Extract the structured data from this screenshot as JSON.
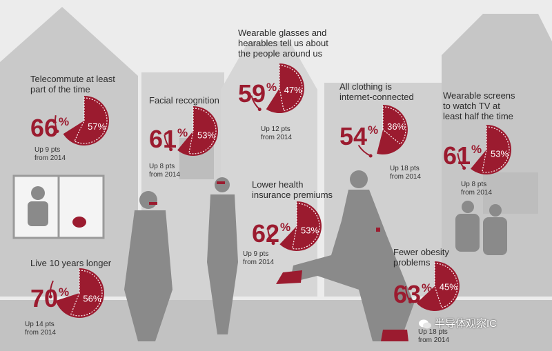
{
  "chart_data": {
    "type": "pie",
    "items": [
      {
        "title": [
          "Telecommute at least",
          "part of the time"
        ],
        "value": 66,
        "previous": 57,
        "note": [
          "Up 9 pts",
          "from 2014"
        ]
      },
      {
        "title": [
          "Facial recognition"
        ],
        "value": 61,
        "previous": 53,
        "note": [
          "Up 8 pts",
          "from 2014"
        ]
      },
      {
        "title": [
          "Wearable glasses and",
          "hearables tell us about",
          "the people around us"
        ],
        "value": 59,
        "previous": 47,
        "note": [
          "Up 12 pts",
          "from 2014"
        ]
      },
      {
        "title": [
          "All clothing is",
          "internet-connected"
        ],
        "value": 54,
        "previous": 36,
        "note": [
          "Up 18 pts",
          "from 2014"
        ]
      },
      {
        "title": [
          "Wearable screens",
          "to watch TV at",
          "least half the time"
        ],
        "value": 61,
        "previous": 53,
        "note": [
          "Up 8 pts",
          "from 2014"
        ]
      },
      {
        "title": [
          "Lower health",
          "insurance premiums"
        ],
        "value": 62,
        "previous": 53,
        "note": [
          "Up 9 pts",
          "from 2014"
        ]
      },
      {
        "title": [
          "Live 10 years longer"
        ],
        "value": 70,
        "previous": 56,
        "note": [
          "Up 14 pts",
          "from 2014"
        ]
      },
      {
        "title": [
          "Fewer obesity",
          "problems"
        ],
        "value": 63,
        "previous": 45,
        "note": [
          "Up 18 pts",
          "from 2014"
        ]
      }
    ]
  },
  "watermark": "半导体观察IC",
  "colors": {
    "accent": "#9b1b2f",
    "background": "#ececec",
    "silhouette": "#b3b3b3",
    "people": "#7d7d7d"
  }
}
